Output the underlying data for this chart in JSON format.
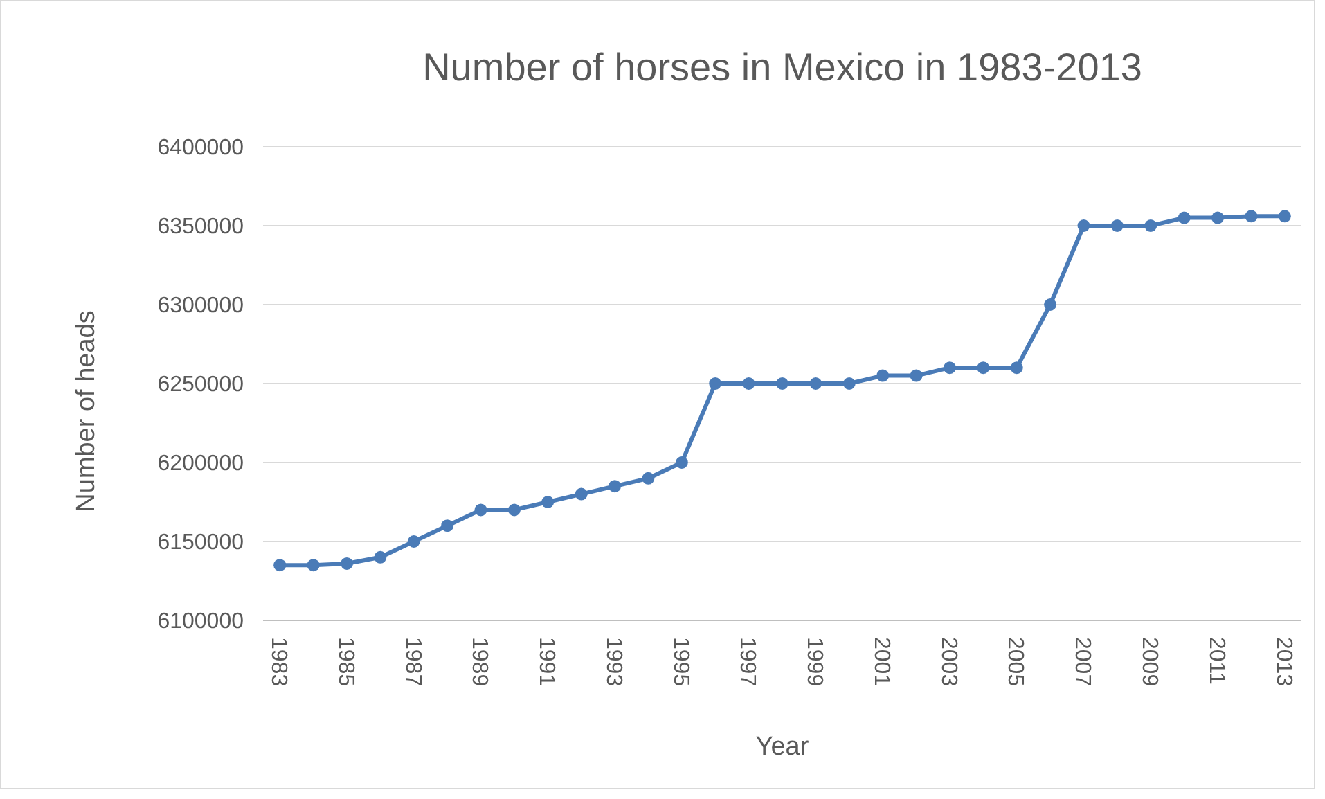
{
  "chart_data": {
    "type": "line",
    "title": "Number of horses in Mexico in 1983-2013",
    "xlabel": "Year",
    "ylabel": "Number of heads",
    "categories": [
      "1983",
      null,
      "1985",
      null,
      "1987",
      null,
      "1989",
      null,
      "1991",
      null,
      "1993",
      null,
      "1995",
      null,
      "1997",
      null,
      "1999",
      null,
      "2001",
      null,
      "2003",
      null,
      "2005",
      null,
      "2007",
      null,
      "2009",
      null,
      "2011",
      null,
      "2013"
    ],
    "series": [
      {
        "color": "#4a7bb7",
        "values": [
          6135000,
          6135000,
          6136000,
          6140000,
          6150000,
          6160000,
          6170000,
          6170000,
          6175000,
          6180000,
          6185000,
          6190000,
          6200000,
          6250000,
          6250000,
          6250000,
          6250000,
          6250000,
          6255000,
          6255000,
          6260000,
          6260000,
          6260000,
          6300000,
          6350000,
          6350000,
          6350000,
          6355000,
          6355000,
          6356000,
          6356000
        ]
      }
    ],
    "ylim": [
      6100000,
      6400000
    ],
    "yticks": [
      6100000,
      6150000,
      6200000,
      6250000,
      6300000,
      6350000,
      6400000
    ],
    "grid": "y",
    "marker": "circle",
    "line_style": "solid"
  }
}
